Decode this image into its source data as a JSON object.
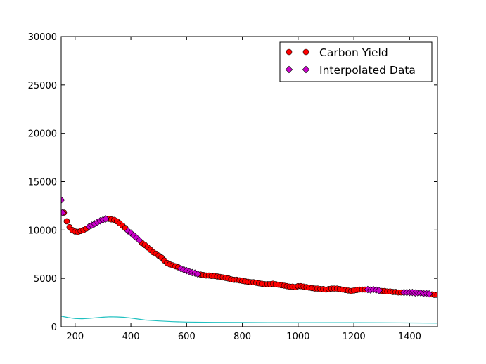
{
  "chart_data": {
    "type": "scatter",
    "title": "",
    "xlabel": "",
    "ylabel": "",
    "xlim": [
      150,
      1500
    ],
    "ylim": [
      0,
      30000
    ],
    "grid": false,
    "legend_position": "top-right",
    "x_ticks": [
      200,
      400,
      600,
      800,
      1000,
      1200,
      1400
    ],
    "y_ticks": [
      0,
      5000,
      10000,
      15000,
      20000,
      25000,
      30000
    ],
    "series": [
      {
        "name": "Carbon Yield",
        "marker": "circle",
        "color": "#ff0000",
        "points": [
          [
            160,
            11800
          ],
          [
            170,
            10900
          ],
          [
            180,
            10300
          ],
          [
            190,
            10000
          ],
          [
            200,
            9850
          ],
          [
            210,
            9800
          ],
          [
            220,
            9900
          ],
          [
            230,
            10000
          ],
          [
            240,
            10150
          ],
          [
            320,
            11150
          ],
          [
            330,
            11100
          ],
          [
            340,
            11050
          ],
          [
            350,
            10900
          ],
          [
            360,
            10700
          ],
          [
            370,
            10450
          ],
          [
            380,
            10200
          ],
          [
            440,
            8650
          ],
          [
            450,
            8450
          ],
          [
            460,
            8200
          ],
          [
            470,
            7950
          ],
          [
            480,
            7700
          ],
          [
            490,
            7550
          ],
          [
            500,
            7350
          ],
          [
            510,
            7150
          ],
          [
            520,
            6850
          ],
          [
            530,
            6600
          ],
          [
            540,
            6450
          ],
          [
            550,
            6350
          ],
          [
            560,
            6250
          ],
          [
            570,
            6150
          ],
          [
            650,
            5400
          ],
          [
            660,
            5350
          ],
          [
            670,
            5300
          ],
          [
            680,
            5300
          ],
          [
            690,
            5250
          ],
          [
            700,
            5250
          ],
          [
            710,
            5200
          ],
          [
            720,
            5150
          ],
          [
            730,
            5100
          ],
          [
            740,
            5050
          ],
          [
            750,
            5000
          ],
          [
            760,
            4900
          ],
          [
            770,
            4850
          ],
          [
            780,
            4850
          ],
          [
            790,
            4800
          ],
          [
            800,
            4750
          ],
          [
            810,
            4700
          ],
          [
            820,
            4650
          ],
          [
            830,
            4600
          ],
          [
            840,
            4600
          ],
          [
            850,
            4550
          ],
          [
            860,
            4500
          ],
          [
            870,
            4450
          ],
          [
            880,
            4400
          ],
          [
            890,
            4400
          ],
          [
            900,
            4400
          ],
          [
            910,
            4450
          ],
          [
            920,
            4400
          ],
          [
            930,
            4350
          ],
          [
            940,
            4300
          ],
          [
            950,
            4250
          ],
          [
            960,
            4200
          ],
          [
            970,
            4150
          ],
          [
            980,
            4150
          ],
          [
            990,
            4100
          ],
          [
            1000,
            4200
          ],
          [
            1010,
            4200
          ],
          [
            1020,
            4150
          ],
          [
            1030,
            4100
          ],
          [
            1040,
            4050
          ],
          [
            1050,
            4000
          ],
          [
            1060,
            3950
          ],
          [
            1070,
            3950
          ],
          [
            1080,
            3900
          ],
          [
            1090,
            3900
          ],
          [
            1100,
            3850
          ],
          [
            1110,
            3900
          ],
          [
            1120,
            3950
          ],
          [
            1130,
            3950
          ],
          [
            1140,
            3950
          ],
          [
            1150,
            3900
          ],
          [
            1160,
            3850
          ],
          [
            1170,
            3800
          ],
          [
            1180,
            3750
          ],
          [
            1190,
            3700
          ],
          [
            1200,
            3750
          ],
          [
            1210,
            3800
          ],
          [
            1220,
            3850
          ],
          [
            1230,
            3850
          ],
          [
            1240,
            3850
          ],
          [
            1300,
            3700
          ],
          [
            1310,
            3700
          ],
          [
            1320,
            3650
          ],
          [
            1330,
            3650
          ],
          [
            1340,
            3600
          ],
          [
            1350,
            3600
          ],
          [
            1360,
            3550
          ],
          [
            1370,
            3550
          ],
          [
            1480,
            3350
          ],
          [
            1490,
            3300
          ],
          [
            1500,
            3300
          ]
        ]
      },
      {
        "name": "Interpolated Data",
        "marker": "diamond",
        "color": "#cc00cc",
        "points": [
          [
            150,
            13100
          ],
          [
            155,
            11800
          ],
          [
            250,
            10350
          ],
          [
            260,
            10500
          ],
          [
            270,
            10650
          ],
          [
            280,
            10800
          ],
          [
            290,
            10950
          ],
          [
            300,
            11050
          ],
          [
            310,
            11150
          ],
          [
            390,
            9900
          ],
          [
            400,
            9700
          ],
          [
            410,
            9450
          ],
          [
            420,
            9200
          ],
          [
            430,
            8950
          ],
          [
            580,
            6000
          ],
          [
            590,
            5900
          ],
          [
            600,
            5800
          ],
          [
            610,
            5700
          ],
          [
            620,
            5600
          ],
          [
            630,
            5550
          ],
          [
            640,
            5450
          ],
          [
            1250,
            3850
          ],
          [
            1260,
            3800
          ],
          [
            1270,
            3850
          ],
          [
            1280,
            3800
          ],
          [
            1290,
            3750
          ],
          [
            1380,
            3550
          ],
          [
            1390,
            3550
          ],
          [
            1400,
            3550
          ],
          [
            1410,
            3550
          ],
          [
            1420,
            3500
          ],
          [
            1430,
            3500
          ],
          [
            1440,
            3500
          ],
          [
            1450,
            3450
          ],
          [
            1460,
            3450
          ],
          [
            1470,
            3400
          ]
        ]
      },
      {
        "name": "",
        "type": "line",
        "color": "#20c0c0",
        "points": [
          [
            150,
            1100
          ],
          [
            175,
            950
          ],
          [
            200,
            850
          ],
          [
            225,
            830
          ],
          [
            250,
            870
          ],
          [
            275,
            930
          ],
          [
            300,
            990
          ],
          [
            325,
            1030
          ],
          [
            350,
            1020
          ],
          [
            375,
            980
          ],
          [
            400,
            900
          ],
          [
            450,
            700
          ],
          [
            500,
            600
          ],
          [
            550,
            530
          ],
          [
            600,
            490
          ],
          [
            700,
            460
          ],
          [
            800,
            440
          ],
          [
            900,
            430
          ],
          [
            1000,
            430
          ],
          [
            1100,
            430
          ],
          [
            1200,
            430
          ],
          [
            1300,
            420
          ],
          [
            1400,
            400
          ],
          [
            1450,
            390
          ],
          [
            1500,
            380
          ]
        ]
      }
    ]
  }
}
